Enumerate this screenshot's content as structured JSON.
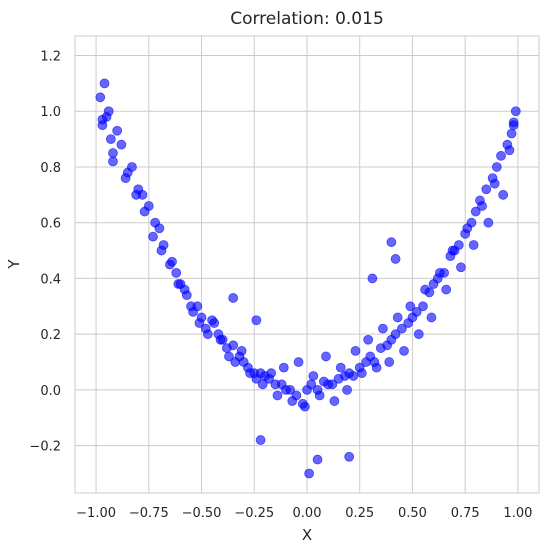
{
  "chart_data": {
    "type": "scatter",
    "title": "Correlation: 0.015",
    "xlabel": "X",
    "ylabel": "Y",
    "xlim": [
      -1.1,
      1.1
    ],
    "ylim": [
      -0.37,
      1.27
    ],
    "x_ticks": [
      -1.0,
      -0.75,
      -0.5,
      -0.25,
      0.0,
      0.25,
      0.5,
      0.75,
      1.0
    ],
    "x_tick_labels": [
      "−1.00",
      "−0.75",
      "−0.50",
      "−0.25",
      "0.00",
      "0.25",
      "0.50",
      "0.75",
      "1.00"
    ],
    "y_ticks": [
      -0.2,
      0.0,
      0.2,
      0.4,
      0.6,
      0.8,
      1.0,
      1.2
    ],
    "y_tick_labels": [
      "−0.2",
      "0.0",
      "0.2",
      "0.4",
      "0.6",
      "0.8",
      "1.0",
      "1.2"
    ],
    "grid": true,
    "marker_color": "#0000ff",
    "marker_alpha": 0.6,
    "x": [
      -0.98,
      -0.97,
      -0.96,
      -0.95,
      -0.94,
      -0.93,
      -0.92,
      -0.9,
      -0.88,
      -0.85,
      -0.83,
      -0.8,
      -0.78,
      -0.75,
      -0.72,
      -0.7,
      -0.68,
      -0.65,
      -0.62,
      -0.6,
      -0.58,
      -0.55,
      -0.52,
      -0.5,
      -0.48,
      -0.45,
      -0.42,
      -0.4,
      -0.38,
      -0.35,
      -0.32,
      -0.3,
      -0.28,
      -0.25,
      -0.22,
      -0.2,
      -0.18,
      -0.15,
      -0.12,
      -0.1,
      -0.08,
      -0.05,
      -0.02,
      0.0,
      0.02,
      0.05,
      0.08,
      0.1,
      0.12,
      0.15,
      0.18,
      0.2,
      0.22,
      0.25,
      0.28,
      0.3,
      0.32,
      0.35,
      0.38,
      0.4,
      0.42,
      0.45,
      0.48,
      0.5,
      0.52,
      0.55,
      0.58,
      0.6,
      0.62,
      0.65,
      0.68,
      0.7,
      0.72,
      0.75,
      0.78,
      0.8,
      0.82,
      0.85,
      0.88,
      0.9,
      0.92,
      0.95,
      0.97,
      0.98,
      0.99,
      -0.97,
      -0.92,
      -0.86,
      -0.81,
      -0.77,
      -0.73,
      -0.69,
      -0.64,
      -0.61,
      -0.57,
      -0.54,
      -0.51,
      -0.47,
      -0.44,
      -0.41,
      -0.37,
      -0.34,
      -0.31,
      -0.27,
      -0.24,
      -0.21,
      -0.17,
      -0.14,
      -0.11,
      -0.07,
      -0.04,
      -0.01,
      0.03,
      0.06,
      0.09,
      0.13,
      0.16,
      0.19,
      0.23,
      0.26,
      0.29,
      0.33,
      0.36,
      0.39,
      0.43,
      0.46,
      0.49,
      0.53,
      0.56,
      0.59,
      0.63,
      0.66,
      0.69,
      0.73,
      0.76,
      0.79,
      0.83,
      0.86,
      0.89,
      0.93,
      0.96,
      0.98,
      0.01,
      0.2,
      0.31,
      -0.22,
      -0.35,
      0.42,
      -0.24,
      0.05,
      0.4
    ],
    "y": [
      1.05,
      0.95,
      1.1,
      0.98,
      1.0,
      0.9,
      0.85,
      0.93,
      0.88,
      0.78,
      0.8,
      0.72,
      0.7,
      0.66,
      0.6,
      0.58,
      0.52,
      0.45,
      0.42,
      0.38,
      0.36,
      0.3,
      0.3,
      0.26,
      0.22,
      0.25,
      0.2,
      0.18,
      0.15,
      0.16,
      0.12,
      0.1,
      0.08,
      0.06,
      0.06,
      0.05,
      0.04,
      0.02,
      0.02,
      0.0,
      0.0,
      -0.02,
      -0.05,
      0.0,
      0.02,
      0.0,
      0.03,
      0.02,
      0.02,
      0.04,
      0.05,
      0.06,
      0.05,
      0.08,
      0.1,
      0.12,
      0.1,
      0.15,
      0.16,
      0.18,
      0.2,
      0.22,
      0.24,
      0.26,
      0.28,
      0.3,
      0.35,
      0.38,
      0.4,
      0.42,
      0.48,
      0.5,
      0.52,
      0.56,
      0.6,
      0.64,
      0.68,
      0.72,
      0.76,
      0.8,
      0.84,
      0.88,
      0.92,
      0.96,
      1.0,
      0.97,
      0.82,
      0.76,
      0.7,
      0.64,
      0.55,
      0.5,
      0.46,
      0.38,
      0.34,
      0.28,
      0.24,
      0.2,
      0.24,
      0.18,
      0.12,
      0.1,
      0.14,
      0.06,
      0.04,
      0.02,
      0.06,
      -0.02,
      0.08,
      -0.04,
      0.1,
      -0.06,
      0.05,
      -0.02,
      0.12,
      -0.04,
      0.08,
      0.0,
      0.14,
      0.06,
      0.18,
      0.08,
      0.22,
      0.1,
      0.26,
      0.14,
      0.3,
      0.2,
      0.36,
      0.26,
      0.42,
      0.36,
      0.5,
      0.44,
      0.58,
      0.52,
      0.66,
      0.6,
      0.74,
      0.7,
      0.86,
      0.95,
      -0.3,
      -0.24,
      0.4,
      -0.18,
      0.33,
      0.47,
      0.25,
      -0.25,
      0.53
    ]
  }
}
